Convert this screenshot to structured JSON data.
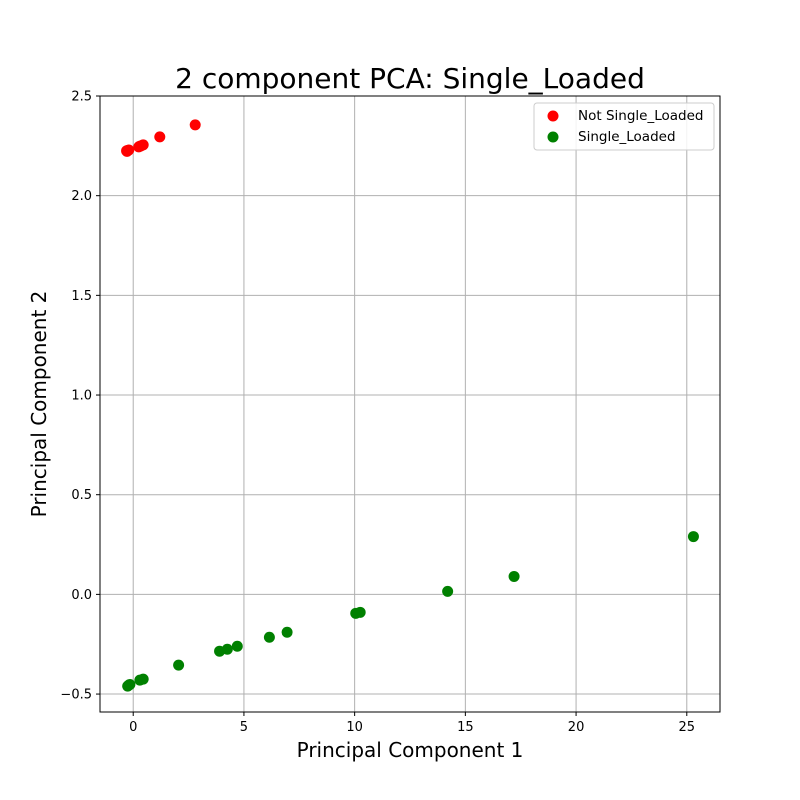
{
  "chart_data": {
    "type": "scatter",
    "title": "2 component PCA: Single_Loaded",
    "xlabel": "Principal Component 1",
    "ylabel": "Principal Component 2",
    "xlim": [
      -1.5,
      26.5
    ],
    "ylim": [
      -0.59,
      2.5
    ],
    "xticks": [
      0,
      5,
      10,
      15,
      20,
      25
    ],
    "yticks": [
      -0.5,
      0.0,
      0.5,
      1.0,
      1.5,
      2.0,
      2.5
    ],
    "xtick_labels": [
      "0",
      "5",
      "10",
      "15",
      "20",
      "25"
    ],
    "ytick_labels": [
      "−0.5",
      "0.0",
      "0.5",
      "1.0",
      "1.5",
      "2.0",
      "2.5"
    ],
    "grid": true,
    "legend": "top-right",
    "series": [
      {
        "name": "Not Single_Loaded",
        "color": "#ff0000",
        "points": [
          [
            -0.3,
            2.225
          ],
          [
            -0.25,
            2.227
          ],
          [
            -0.2,
            2.229
          ],
          [
            -0.28,
            2.222
          ],
          [
            0.25,
            2.245
          ],
          [
            0.3,
            2.248
          ],
          [
            0.35,
            2.25
          ],
          [
            0.45,
            2.255
          ],
          [
            1.2,
            2.295
          ],
          [
            2.8,
            2.355
          ]
        ]
      },
      {
        "name": "Single_Loaded",
        "color": "#008000",
        "points": [
          [
            -0.2,
            -0.455
          ],
          [
            -0.25,
            -0.46
          ],
          [
            -0.15,
            -0.452
          ],
          [
            0.3,
            -0.43
          ],
          [
            0.45,
            -0.425
          ],
          [
            2.05,
            -0.355
          ],
          [
            3.9,
            -0.285
          ],
          [
            4.25,
            -0.275
          ],
          [
            4.7,
            -0.26
          ],
          [
            6.15,
            -0.215
          ],
          [
            6.95,
            -0.19
          ],
          [
            10.05,
            -0.095
          ],
          [
            10.25,
            -0.09
          ],
          [
            14.2,
            0.015
          ],
          [
            17.2,
            0.09
          ],
          [
            25.3,
            0.29
          ]
        ]
      }
    ]
  }
}
